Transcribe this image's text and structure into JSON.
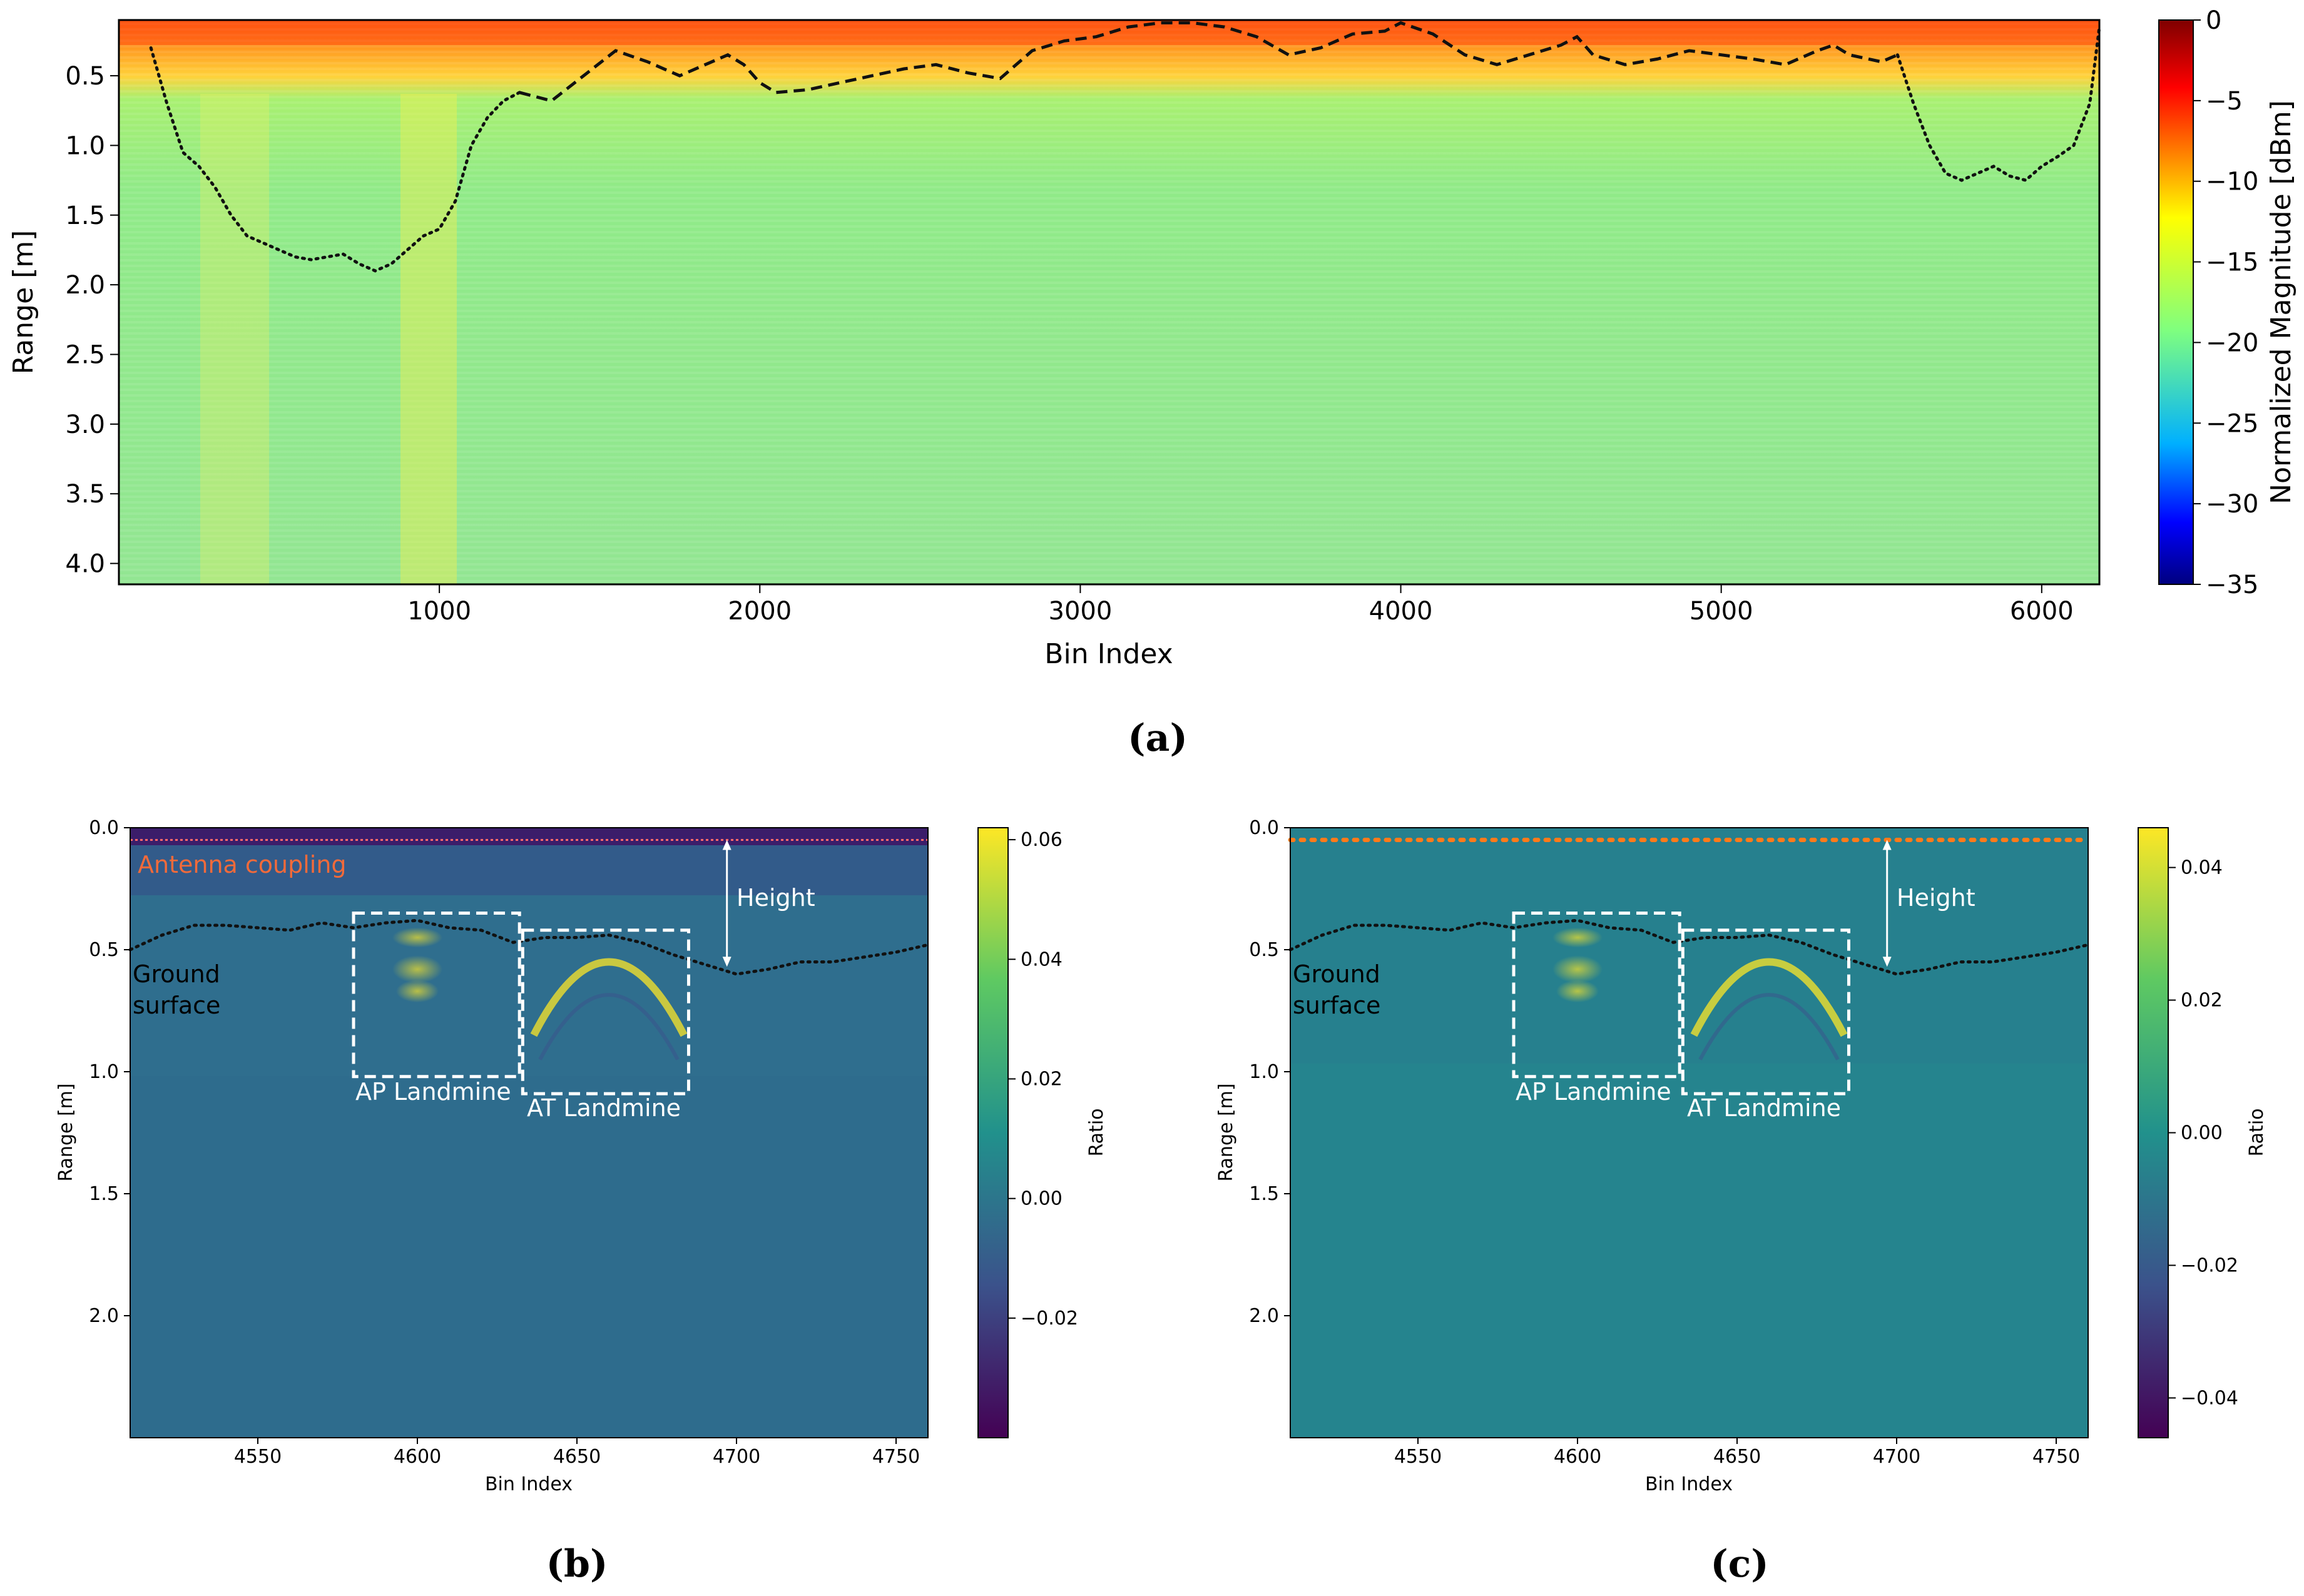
{
  "chart_data": [
    {
      "id": "a",
      "type": "heatmap",
      "panel_label": "(a)",
      "xlabel": "Bin Index",
      "ylabel": "Range [m]",
      "xlim": [
        0,
        6180
      ],
      "ylim": [
        4.15,
        0.1
      ],
      "xticks": [
        1000,
        2000,
        3000,
        4000,
        5000,
        6000
      ],
      "yticks": [
        0.5,
        1.0,
        1.5,
        2.0,
        2.5,
        3.0,
        3.5,
        4.0
      ],
      "ytick_labels": [
        "0.5",
        "1.0",
        "1.5",
        "2.0",
        "2.5",
        "3.0",
        "3.5",
        "4.0"
      ],
      "colorbar": {
        "label": "Normalized Magnitude [dBm]",
        "range": [
          -35,
          0
        ],
        "ticks": [
          0,
          -5,
          -10,
          -15,
          -20,
          -25,
          -30,
          -35
        ],
        "tick_labels": [
          "0",
          "−5",
          "−10",
          "−15",
          "−20",
          "−25",
          "−30",
          "−35"
        ],
        "colormap": "jet"
      },
      "series": [
        {
          "name": "ground surface (dashed)",
          "style": "dashed",
          "x": [
            1250,
            1350,
            1450,
            1550,
            1650,
            1750,
            1850,
            1900,
            1950,
            2000,
            2050,
            2150,
            2250,
            2350,
            2450,
            2550,
            2650,
            2750,
            2850,
            2950,
            3050,
            3150,
            3250,
            3350,
            3450,
            3550,
            3650,
            3750,
            3850,
            3950,
            4000,
            4100,
            4200,
            4300,
            4400,
            4500,
            4550,
            4600,
            4700,
            4800,
            4900,
            5000,
            5100,
            5200,
            5300,
            5350,
            5400,
            5500,
            5550
          ],
          "y": [
            0.62,
            0.68,
            0.5,
            0.32,
            0.4,
            0.5,
            0.4,
            0.35,
            0.42,
            0.55,
            0.62,
            0.6,
            0.55,
            0.5,
            0.45,
            0.42,
            0.48,
            0.52,
            0.32,
            0.25,
            0.22,
            0.15,
            0.12,
            0.12,
            0.15,
            0.22,
            0.35,
            0.3,
            0.2,
            0.18,
            0.12,
            0.2,
            0.35,
            0.42,
            0.35,
            0.28,
            0.22,
            0.35,
            0.42,
            0.38,
            0.32,
            0.35,
            0.38,
            0.42,
            0.32,
            0.28,
            0.35,
            0.4,
            0.35
          ]
        },
        {
          "name": "ground surface (dotted)",
          "style": "dotted",
          "x": [
            100,
            150,
            200,
            250,
            300,
            350,
            400,
            450,
            500,
            550,
            600,
            650,
            700,
            750,
            800,
            850,
            900,
            950,
            1000,
            1050,
            1100,
            1150,
            1200,
            1250,
            5550,
            5600,
            5650,
            5700,
            5750,
            5800,
            5850,
            5900,
            5950,
            6000,
            6050,
            6100,
            6150,
            6180
          ],
          "y": [
            0.3,
            0.7,
            1.05,
            1.15,
            1.3,
            1.5,
            1.65,
            1.7,
            1.75,
            1.8,
            1.82,
            1.8,
            1.78,
            1.85,
            1.9,
            1.85,
            1.75,
            1.65,
            1.6,
            1.4,
            1.0,
            0.8,
            0.68,
            0.62,
            0.35,
            0.7,
            1.0,
            1.2,
            1.25,
            1.2,
            1.15,
            1.22,
            1.25,
            1.15,
            1.08,
            1.0,
            0.7,
            0.15
          ]
        }
      ]
    },
    {
      "id": "b",
      "type": "heatmap",
      "panel_label": "(b)",
      "xlabel": "Bin Index",
      "ylabel": "Range [m]",
      "xlim": [
        4510,
        4760
      ],
      "ylim": [
        2.5,
        0.0
      ],
      "xticks": [
        4550,
        4600,
        4650,
        4700,
        4750
      ],
      "yticks": [
        0.0,
        0.5,
        1.0,
        1.5,
        2.0
      ],
      "ytick_labels": [
        "0.0",
        "0.5",
        "1.0",
        "1.5",
        "2.0"
      ],
      "colorbar": {
        "label": "Ratio",
        "range": [
          -0.04,
          0.062
        ],
        "ticks": [
          0.06,
          0.04,
          0.02,
          0.0,
          -0.02
        ],
        "tick_labels": [
          "0.06",
          "0.04",
          "0.02",
          "0.00",
          "−0.02"
        ],
        "colormap": "viridis"
      },
      "annotations": {
        "antenna": "Antenna coupling",
        "ground_1": "Ground",
        "ground_2": "surface",
        "height": "Height",
        "ap": "AP Landmine",
        "at": "AT Landmine"
      },
      "antenna_coupling_range": 0.05,
      "ground_surface": {
        "x": [
          4510,
          4520,
          4530,
          4540,
          4550,
          4560,
          4570,
          4580,
          4590,
          4600,
          4610,
          4620,
          4630,
          4640,
          4650,
          4660,
          4670,
          4680,
          4690,
          4700,
          4710,
          4720,
          4730,
          4740,
          4750,
          4760
        ],
        "y": [
          0.5,
          0.44,
          0.4,
          0.4,
          0.41,
          0.42,
          0.39,
          0.41,
          0.39,
          0.38,
          0.41,
          0.42,
          0.47,
          0.45,
          0.45,
          0.44,
          0.47,
          0.52,
          0.56,
          0.6,
          0.58,
          0.55,
          0.55,
          0.53,
          0.51,
          0.48
        ]
      },
      "height_arrow": {
        "x": 4697,
        "y1": 0.05,
        "y2": 0.57
      },
      "boxes": [
        {
          "x0": 4580,
          "x1": 4632,
          "y0": 0.35,
          "y1": 1.02
        },
        {
          "x0": 4633,
          "x1": 4685,
          "y0": 0.42,
          "y1": 1.09
        }
      ]
    },
    {
      "id": "c",
      "type": "heatmap",
      "panel_label": "(c)",
      "xlabel": "Bin Index",
      "ylabel": "Range [m]",
      "xlim": [
        4510,
        4760
      ],
      "ylim": [
        2.5,
        0.0
      ],
      "xticks": [
        4550,
        4600,
        4650,
        4700,
        4750
      ],
      "yticks": [
        0.0,
        0.5,
        1.0,
        1.5,
        2.0
      ],
      "ytick_labels": [
        "0.0",
        "0.5",
        "1.0",
        "1.5",
        "2.0"
      ],
      "colorbar": {
        "label": "Ratio",
        "range": [
          -0.046,
          0.046
        ],
        "ticks": [
          0.04,
          0.02,
          0.0,
          -0.02,
          -0.04
        ],
        "tick_labels": [
          "0.04",
          "0.02",
          "0.00",
          "−0.02",
          "−0.04"
        ],
        "colormap": "viridis"
      },
      "annotations": {
        "ground_1": "Ground",
        "ground_2": "surface",
        "height": "Height",
        "ap": "AP Landmine",
        "at": "AT Landmine"
      },
      "antenna_coupling_range": 0.05,
      "ground_surface": {
        "x": [
          4510,
          4520,
          4530,
          4540,
          4550,
          4560,
          4570,
          4580,
          4590,
          4600,
          4610,
          4620,
          4630,
          4640,
          4650,
          4660,
          4670,
          4680,
          4690,
          4700,
          4710,
          4720,
          4730,
          4740,
          4750,
          4760
        ],
        "y": [
          0.5,
          0.44,
          0.4,
          0.4,
          0.41,
          0.42,
          0.39,
          0.41,
          0.39,
          0.38,
          0.41,
          0.42,
          0.47,
          0.45,
          0.45,
          0.44,
          0.47,
          0.52,
          0.56,
          0.6,
          0.58,
          0.55,
          0.55,
          0.53,
          0.51,
          0.48
        ]
      },
      "height_arrow": {
        "x": 4697,
        "y1": 0.05,
        "y2": 0.57
      },
      "boxes": [
        {
          "x0": 4580,
          "x1": 4632,
          "y0": 0.35,
          "y1": 1.02
        },
        {
          "x0": 4633,
          "x1": 4685,
          "y0": 0.42,
          "y1": 1.09
        }
      ]
    }
  ],
  "colors": {
    "antenna_line_b": "#ff6a6a",
    "antenna_text": "#f26a3a",
    "antenna_dots_c": "#ff7a1a",
    "box": "#ffffff",
    "surface_line": "#111111"
  }
}
